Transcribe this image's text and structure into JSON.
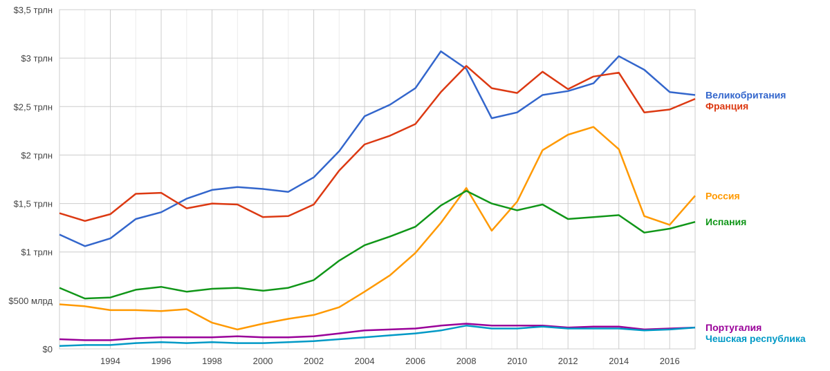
{
  "chart_data": {
    "type": "line",
    "title": "",
    "xlabel": "",
    "ylabel": "",
    "x": [
      1992,
      1993,
      1994,
      1995,
      1996,
      1997,
      1998,
      1999,
      2000,
      2001,
      2002,
      2003,
      2004,
      2005,
      2006,
      2007,
      2008,
      2009,
      2010,
      2011,
      2012,
      2013,
      2014,
      2015,
      2016,
      2017
    ],
    "xlim": [
      1992,
      2017
    ],
    "ylim": [
      0,
      3.5
    ],
    "grid": true,
    "legend_placement": "right (inline labels at line ends)",
    "x_ticks": [
      {
        "value": 1994,
        "label": "1994"
      },
      {
        "value": 1996,
        "label": "1996"
      },
      {
        "value": 1998,
        "label": "1998"
      },
      {
        "value": 2000,
        "label": "2000"
      },
      {
        "value": 2002,
        "label": "2002"
      },
      {
        "value": 2004,
        "label": "2004"
      },
      {
        "value": 2006,
        "label": "2006"
      },
      {
        "value": 2008,
        "label": "2008"
      },
      {
        "value": 2010,
        "label": "2010"
      },
      {
        "value": 2012,
        "label": "2012"
      },
      {
        "value": 2014,
        "label": "2014"
      },
      {
        "value": 2016,
        "label": "2016"
      }
    ],
    "y_ticks": [
      {
        "value": 0,
        "label": "$0"
      },
      {
        "value": 0.5,
        "label": "$500 млрд"
      },
      {
        "value": 1,
        "label": "$1 трлн"
      },
      {
        "value": 1.5,
        "label": "$1,5 трлн"
      },
      {
        "value": 2,
        "label": "$2 трлн"
      },
      {
        "value": 2.5,
        "label": "$2,5 трлн"
      },
      {
        "value": 3,
        "label": "$3 трлн"
      },
      {
        "value": 3.5,
        "label": "$3,5 трлн"
      }
    ],
    "series": [
      {
        "name": "Великобритания",
        "color": "#3366cc",
        "values": [
          1.18,
          1.06,
          1.14,
          1.34,
          1.41,
          1.55,
          1.64,
          1.67,
          1.65,
          1.62,
          1.77,
          2.04,
          2.4,
          2.52,
          2.69,
          3.07,
          2.89,
          2.38,
          2.44,
          2.62,
          2.66,
          2.74,
          3.02,
          2.88,
          2.65,
          2.62
        ]
      },
      {
        "name": "Франция",
        "color": "#dc3912",
        "values": [
          1.4,
          1.32,
          1.39,
          1.6,
          1.61,
          1.45,
          1.5,
          1.49,
          1.36,
          1.37,
          1.49,
          1.84,
          2.11,
          2.2,
          2.32,
          2.65,
          2.92,
          2.69,
          2.64,
          2.86,
          2.68,
          2.81,
          2.85,
          2.44,
          2.47,
          2.58
        ]
      },
      {
        "name": "Россия",
        "color": "#ff9900",
        "values": [
          0.46,
          0.44,
          0.4,
          0.4,
          0.39,
          0.41,
          0.27,
          0.2,
          0.26,
          0.31,
          0.35,
          0.43,
          0.59,
          0.76,
          0.99,
          1.3,
          1.66,
          1.22,
          1.52,
          2.05,
          2.21,
          2.29,
          2.06,
          1.37,
          1.28,
          1.58
        ]
      },
      {
        "name": "Испания",
        "color": "#109618",
        "values": [
          0.63,
          0.52,
          0.53,
          0.61,
          0.64,
          0.59,
          0.62,
          0.63,
          0.6,
          0.63,
          0.71,
          0.91,
          1.07,
          1.16,
          1.26,
          1.48,
          1.63,
          1.5,
          1.43,
          1.49,
          1.34,
          1.36,
          1.38,
          1.2,
          1.24,
          1.31
        ]
      },
      {
        "name": "Португалия",
        "color": "#990099",
        "values": [
          0.1,
          0.09,
          0.09,
          0.11,
          0.12,
          0.12,
          0.12,
          0.13,
          0.12,
          0.12,
          0.13,
          0.16,
          0.19,
          0.2,
          0.21,
          0.24,
          0.26,
          0.24,
          0.24,
          0.24,
          0.22,
          0.23,
          0.23,
          0.2,
          0.21,
          0.22
        ]
      },
      {
        "name": "Чешская республика",
        "color": "#0099c6",
        "values": [
          0.03,
          0.04,
          0.04,
          0.06,
          0.07,
          0.06,
          0.07,
          0.06,
          0.06,
          0.07,
          0.08,
          0.1,
          0.12,
          0.14,
          0.16,
          0.19,
          0.24,
          0.21,
          0.21,
          0.23,
          0.21,
          0.21,
          0.21,
          0.19,
          0.2,
          0.22
        ]
      }
    ]
  }
}
